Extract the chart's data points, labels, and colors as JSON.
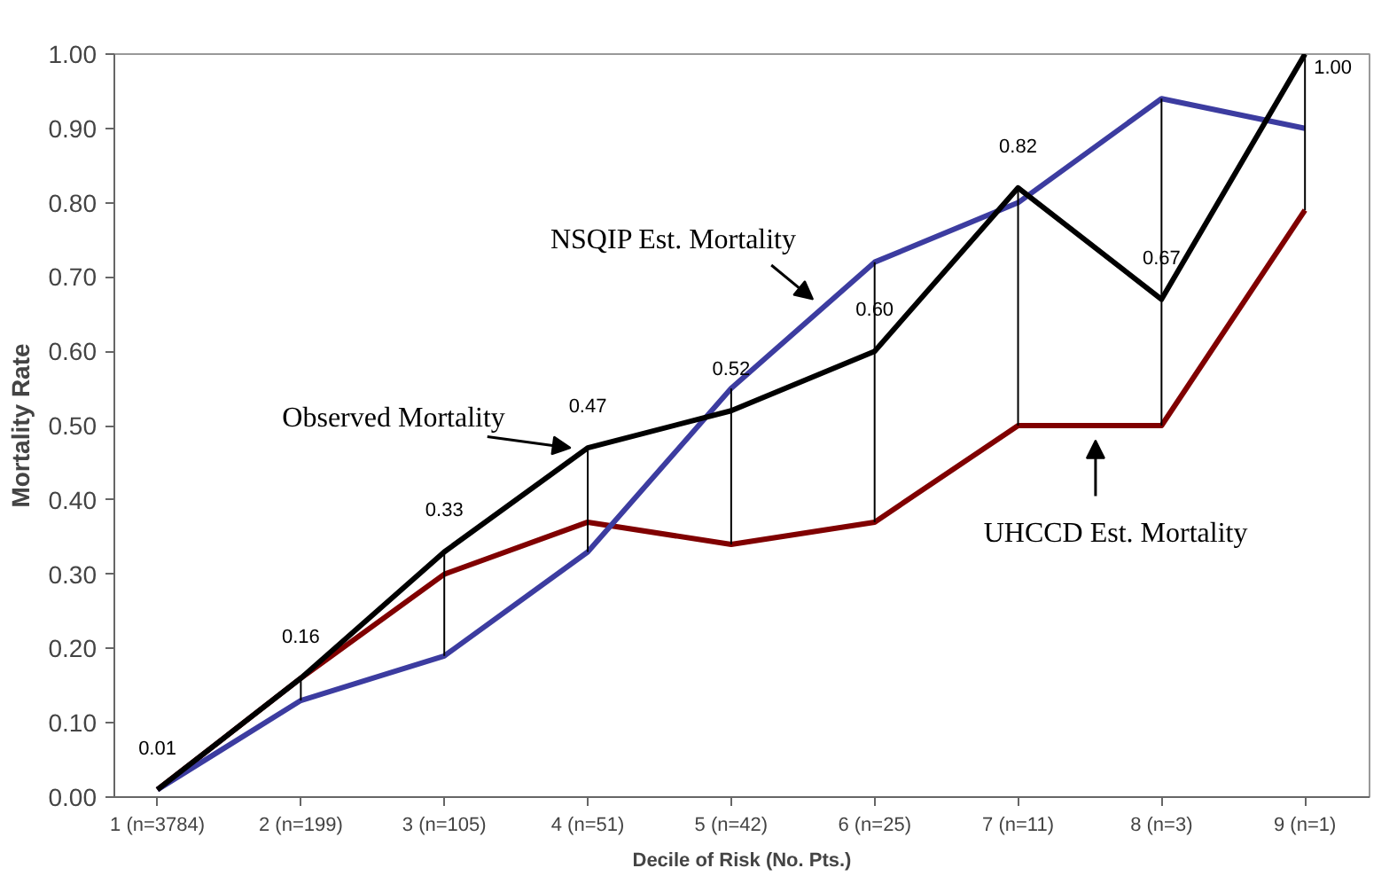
{
  "chart_data": {
    "type": "line",
    "xlabel": "Decile of Risk (No. Pts.)",
    "ylabel": "Mortality Rate",
    "categories": [
      "1 (n=3784)",
      "2 (n=199)",
      "3 (n=105)",
      "4 (n=51)",
      "5 (n=42)",
      "6 (n=25)",
      "7 (n=11)",
      "8 (n=3)",
      "9 (n=1)"
    ],
    "series": [
      {
        "color": "#000000",
        "values": [
          0.01,
          0.16,
          0.33,
          0.47,
          0.52,
          0.6,
          0.82,
          0.67,
          1.0
        ],
        "value_labels": [
          "0.01",
          "0.16",
          "0.33",
          "0.47",
          "0.52",
          "0.60",
          "0.82",
          "0.67",
          "1.00"
        ],
        "errors": [
          null,
          [
            0.13,
            0.16
          ],
          [
            0.19,
            0.33
          ],
          [
            0.33,
            0.47
          ],
          [
            0.34,
            0.55
          ],
          [
            0.37,
            0.72
          ],
          [
            0.5,
            0.82
          ],
          [
            0.5,
            0.94
          ],
          [
            0.79,
            1.0
          ]
        ]
      },
      {
        "color": "#3c3ca0",
        "values": [
          0.01,
          0.13,
          0.19,
          0.33,
          0.55,
          0.72,
          0.8,
          0.94,
          0.9
        ]
      },
      {
        "color": "#800000",
        "values": [
          0.01,
          0.16,
          0.3,
          0.37,
          0.34,
          0.37,
          0.5,
          0.5,
          0.79
        ]
      }
    ],
    "annotations": [
      {
        "text": "Observed Mortality",
        "x": "4 (n=51)",
        "y": 0.47
      },
      "NSQIP Est. Mortality",
      "UHCCD Est. Mortality"
    ],
    "ylim": [
      0,
      1
    ],
    "yticks": [
      {
        "value": 0,
        "label": "0.00"
      },
      {
        "value": 0.1,
        "label": "0.10"
      },
      {
        "value": 0.2,
        "label": "0.20"
      },
      {
        "value": 0.3,
        "label": "0.30"
      },
      {
        "value": 0.4,
        "label": "0.40"
      },
      {
        "value": 0.5,
        "label": "0.50"
      },
      {
        "value": 0.6,
        "label": "0.60"
      },
      {
        "value": 0.7,
        "label": "0.70"
      },
      {
        "value": 0.8,
        "label": "0.80"
      },
      {
        "value": 0.9,
        "label": "0.90"
      },
      {
        "value": 1,
        "label": "1.00"
      }
    ],
    "grid": false,
    "line_style": "solid"
  }
}
